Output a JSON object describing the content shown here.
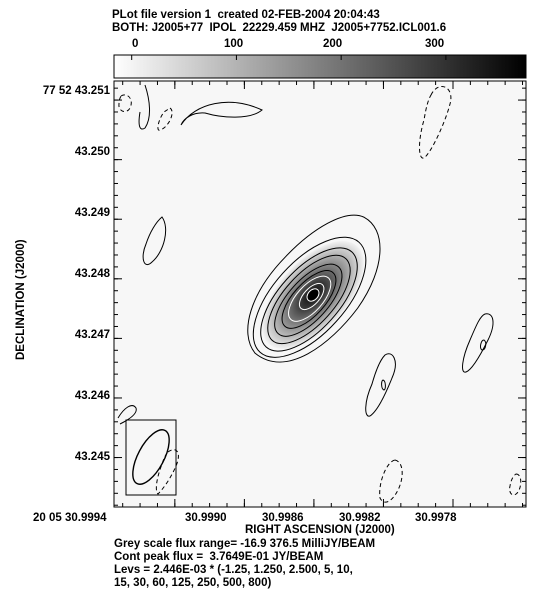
{
  "header": {
    "line1": "PLot file version 1  created 02-FEB-2004 20:04:43",
    "line2": "BOTH: J2005+77  IPOL  22229.459 MHZ  J2005+7752.ICL001.6"
  },
  "greyscale_wedge": {
    "tick_labels": [
      "0",
      "100",
      "200",
      "300"
    ],
    "tick_values": [
      0,
      100,
      200,
      300
    ],
    "range": [
      -16.9,
      376.5
    ]
  },
  "footer": {
    "line1": "Grey scale flux range= -16.9 376.5 MilliJY/BEAM",
    "line2": "Cont peak flux =  3.7649E-01 JY/BEAM",
    "line3": "Levs = 2.446E-03 * (-1.25, 1.250, 2.500, 5, 10,",
    "line4": "15, 30, 60, 125, 250, 500, 800)"
  },
  "chart_data": {
    "type": "contour",
    "title": "PLot file version 1  created 02-FEB-2004 20:04:43",
    "subtitle": "BOTH: J2005+77  IPOL  22229.459 MHZ  J2005+7752.ICL001.6",
    "xlabel": "RIGHT ASCENSION (J2000)",
    "ylabel": "DECLINATION (J2000)",
    "x_ticks": [
      {
        "label": "20 05 30.9994",
        "value": 30.9994
      },
      {
        "label": "30.9990",
        "value": 30.999
      },
      {
        "label": "30.9986",
        "value": 30.9986
      },
      {
        "label": "30.9982",
        "value": 30.9982
      },
      {
        "label": "30.9978",
        "value": 30.9978
      }
    ],
    "y_ticks": [
      {
        "label": "77 52 43.251",
        "value": 43.251
      },
      {
        "label": "43.250",
        "value": 43.25
      },
      {
        "label": "43.249",
        "value": 43.249
      },
      {
        "label": "43.248",
        "value": 43.248
      },
      {
        "label": "43.247",
        "value": 43.247
      },
      {
        "label": "43.246",
        "value": 43.246
      },
      {
        "label": "43.245",
        "value": 43.245
      }
    ],
    "xlim": [
      30.99975,
      30.99738
    ],
    "ylim": [
      43.24417,
      43.25132
    ],
    "contour_base": 0.002446,
    "contour_levels": [
      -1.25,
      1.25,
      2.5,
      5,
      10,
      15,
      30,
      60,
      125,
      250,
      500,
      800
    ],
    "peak_flux_jy_per_beam": 0.37649,
    "greyscale_range_mjy_per_beam": [
      -16.9,
      376.5
    ],
    "source": {
      "ra": 30.99865,
      "dec": 43.24765
    }
  }
}
